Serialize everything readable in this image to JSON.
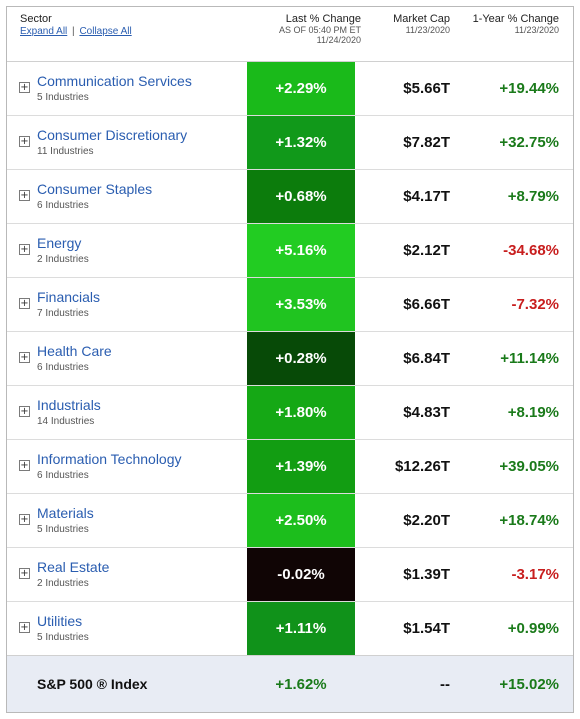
{
  "header": {
    "sector_label": "Sector",
    "expand_all": "Expand All",
    "separator": "|",
    "collapse_all": "Collapse All",
    "change_label": "Last % Change",
    "change_asof": "AS OF 05:40 PM ET",
    "change_date": "11/24/2020",
    "mcap_label": "Market Cap",
    "mcap_date": "11/23/2020",
    "year_label": "1-Year % Change",
    "year_date": "11/23/2020"
  },
  "expander_symbol": "+",
  "colors": {
    "bright_green": "#1ec31e",
    "medium_green": "#18a518",
    "dark_green": "#0f7d0f",
    "darkest_green": "#084a08",
    "negative_black": "#120606",
    "positive_text": "#1a7a1a",
    "negative_text": "#c81e1e",
    "link": "#2a5db0"
  },
  "sectors": [
    {
      "name": "Communication Services",
      "industries": "5 Industries",
      "change": "+2.29%",
      "change_color": "#1aba1a",
      "mcap": "$5.66T",
      "year": "+19.44%",
      "year_sign": "pos"
    },
    {
      "name": "Consumer Discretionary",
      "industries": "11 Industries",
      "change": "+1.32%",
      "change_color": "#11991a",
      "mcap": "$7.82T",
      "year": "+32.75%",
      "year_sign": "pos"
    },
    {
      "name": "Consumer Staples",
      "industries": "6 Industries",
      "change": "+0.68%",
      "change_color": "#0c7c0c",
      "mcap": "$4.17T",
      "year": "+8.79%",
      "year_sign": "pos"
    },
    {
      "name": "Energy",
      "industries": "2 Industries",
      "change": "+5.16%",
      "change_color": "#22cc22",
      "mcap": "$2.12T",
      "year": "-34.68%",
      "year_sign": "neg"
    },
    {
      "name": "Financials",
      "industries": "7 Industries",
      "change": "+3.53%",
      "change_color": "#20c420",
      "mcap": "$6.66T",
      "year": "-7.32%",
      "year_sign": "neg"
    },
    {
      "name": "Health Care",
      "industries": "6 Industries",
      "change": "+0.28%",
      "change_color": "#074a07",
      "mcap": "$6.84T",
      "year": "+11.14%",
      "year_sign": "pos"
    },
    {
      "name": "Industrials",
      "industries": "14 Industries",
      "change": "+1.80%",
      "change_color": "#15a815",
      "mcap": "$4.83T",
      "year": "+8.19%",
      "year_sign": "pos"
    },
    {
      "name": "Information Technology",
      "industries": "6 Industries",
      "change": "+1.39%",
      "change_color": "#129d12",
      "mcap": "$12.26T",
      "year": "+39.05%",
      "year_sign": "pos"
    },
    {
      "name": "Materials",
      "industries": "5 Industries",
      "change": "+2.50%",
      "change_color": "#1cbe1c",
      "mcap": "$2.20T",
      "year": "+18.74%",
      "year_sign": "pos"
    },
    {
      "name": "Real Estate",
      "industries": "2 Industries",
      "change": "-0.02%",
      "change_color": "#100505",
      "mcap": "$1.39T",
      "year": "-3.17%",
      "year_sign": "neg"
    },
    {
      "name": "Utilities",
      "industries": "5 Industries",
      "change": "+1.11%",
      "change_color": "#10921a",
      "mcap": "$1.54T",
      "year": "+0.99%",
      "year_sign": "pos"
    }
  ],
  "index_row": {
    "label": "S&P 500 ® Index",
    "change": "+1.62%",
    "mcap": "--",
    "year": "+15.02%"
  }
}
